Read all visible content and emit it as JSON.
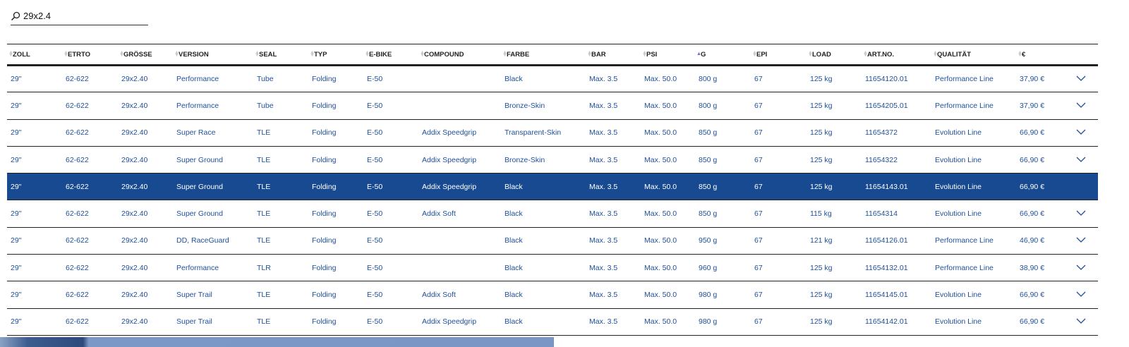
{
  "search": {
    "value": "29x2.4",
    "icon": "search-icon"
  },
  "columns": [
    "ZOLL",
    "ETRTO",
    "GRÖSSE",
    "VERSION",
    "SEAL",
    "TYP",
    "E-BIKE",
    "COMPOUND",
    "FARBE",
    "BAR",
    "PSI",
    "G",
    "EPI",
    "LOAD",
    "ART.NO.",
    "QUALITÄT",
    "€"
  ],
  "sorted_column": "G",
  "sort_direction": "ascending",
  "colors": {
    "link": "#1f4f9a",
    "selected_row": "#174a91"
  },
  "selected_row_index": 4,
  "rows": [
    [
      "29\"",
      "62-622",
      "29x2.40",
      "Performance",
      "Tube",
      "Folding",
      "E-50",
      "",
      "Black",
      "Max. 3.5",
      "Max. 50.0",
      "800 g",
      "67",
      "125 kg",
      "11654120.01",
      "Performance Line",
      "37,90 €"
    ],
    [
      "29\"",
      "62-622",
      "29x2.40",
      "Performance",
      "Tube",
      "Folding",
      "E-50",
      "",
      "Bronze-Skin",
      "Max. 3.5",
      "Max. 50.0",
      "800 g",
      "67",
      "125 kg",
      "11654205.01",
      "Performance Line",
      "37,90 €"
    ],
    [
      "29\"",
      "62-622",
      "29x2.40",
      "Super Race",
      "TLE",
      "Folding",
      "E-50",
      "Addix Speedgrip",
      "Transparent-Skin",
      "Max. 3.5",
      "Max. 50.0",
      "850 g",
      "67",
      "125 kg",
      "11654372",
      "Evolution Line",
      "66,90 €"
    ],
    [
      "29\"",
      "62-622",
      "29x2.40",
      "Super Ground",
      "TLE",
      "Folding",
      "E-50",
      "Addix Speedgrip",
      "Bronze-Skin",
      "Max. 3.5",
      "Max. 50.0",
      "850 g",
      "67",
      "125 kg",
      "11654322",
      "Evolution Line",
      "66,90 €"
    ],
    [
      "29\"",
      "62-622",
      "29x2.40",
      "Super Ground",
      "TLE",
      "Folding",
      "E-50",
      "Addix Speedgrip",
      "Black",
      "Max. 3.5",
      "Max. 50.0",
      "850 g",
      "67",
      "125 kg",
      "11654143.01",
      "Evolution Line",
      "66,90 €"
    ],
    [
      "29\"",
      "62-622",
      "29x2.40",
      "Super Ground",
      "TLE",
      "Folding",
      "E-50",
      "Addix Soft",
      "Black",
      "Max. 3.5",
      "Max. 50.0",
      "850 g",
      "67",
      "115 kg",
      "11654314",
      "Evolution Line",
      "66,90 €"
    ],
    [
      "29\"",
      "62-622",
      "29x2.40",
      "DD, RaceGuard",
      "TLE",
      "Folding",
      "E-50",
      "",
      "Black",
      "Max. 3.5",
      "Max. 50.0",
      "950 g",
      "67",
      "121 kg",
      "11654126.01",
      "Performance Line",
      "46,90 €"
    ],
    [
      "29\"",
      "62-622",
      "29x2.40",
      "Performance",
      "TLR",
      "Folding",
      "E-50",
      "",
      "Black",
      "Max. 3.5",
      "Max. 50.0",
      "960 g",
      "67",
      "125 kg",
      "11654132.01",
      "Performance Line",
      "38,90 €"
    ],
    [
      "29\"",
      "62-622",
      "29x2.40",
      "Super Trail",
      "TLE",
      "Folding",
      "E-50",
      "Addix Soft",
      "Black",
      "Max. 3.5",
      "Max. 50.0",
      "980 g",
      "67",
      "125 kg",
      "11654145.01",
      "Evolution Line",
      "66,90 €"
    ],
    [
      "29\"",
      "62-622",
      "29x2.40",
      "Super Trail",
      "TLE",
      "Folding",
      "E-50",
      "Addix Speedgrip",
      "Black",
      "Max. 3.5",
      "Max. 50.0",
      "980 g",
      "67",
      "125 kg",
      "11654142.01",
      "Evolution Line",
      "66,90 €"
    ]
  ]
}
